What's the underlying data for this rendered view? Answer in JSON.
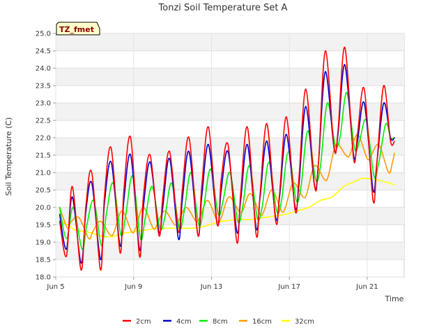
{
  "chart_data": {
    "type": "line",
    "title": "Tonzi Soil Temperature Set A",
    "xlabel": "Time",
    "ylabel": "Soil Temperature (C)",
    "badge": "TZ_fmet",
    "xlim": [
      5.0,
      22.9
    ],
    "ylim": [
      18.0,
      25.0
    ],
    "x_ticks": [
      5,
      9,
      13,
      17,
      21
    ],
    "x_tick_labels": [
      "Jun 5",
      "Jun 9",
      "Jun 13",
      "Jun 17",
      "Jun 21"
    ],
    "y_ticks": [
      18.0,
      18.5,
      19.0,
      19.5,
      20.0,
      20.5,
      21.0,
      21.5,
      22.0,
      22.5,
      23.0,
      23.5,
      24.0,
      24.5,
      25.0
    ],
    "grid": true,
    "legend_position": "bottom",
    "series": [
      {
        "name": "2cm",
        "color": "#ff0000",
        "x": [
          5.2,
          5.55,
          5.85,
          6.3,
          6.55,
          6.85,
          7.3,
          7.5,
          7.85,
          8.3,
          8.5,
          8.85,
          9.3,
          9.5,
          9.85,
          10.3,
          10.5,
          10.85,
          11.3,
          11.5,
          11.85,
          12.3,
          12.5,
          12.85,
          13.3,
          13.5,
          13.85,
          14.3,
          14.5,
          14.85,
          15.3,
          15.5,
          15.85,
          16.3,
          16.5,
          16.85,
          17.3,
          17.5,
          17.85,
          18.3,
          18.5,
          18.85,
          19.3,
          19.5,
          19.85,
          20.3,
          20.5,
          20.85,
          21.3,
          21.5,
          21.85,
          22.2,
          22.4
        ],
        "y": [
          19.6,
          18.6,
          20.6,
          18.2,
          20.05,
          21.0,
          18.2,
          20.3,
          21.7,
          18.7,
          20.5,
          22.0,
          18.6,
          20.3,
          21.5,
          19.2,
          20.3,
          21.6,
          19.3,
          20.5,
          22.0,
          19.2,
          20.6,
          22.3,
          19.5,
          20.8,
          21.8,
          19.0,
          20.4,
          22.3,
          19.2,
          20.4,
          22.4,
          19.6,
          20.4,
          22.6,
          19.9,
          20.9,
          23.4,
          20.6,
          21.3,
          24.5,
          21.7,
          22.2,
          24.6,
          21.4,
          22.1,
          23.4,
          20.2,
          21.3,
          23.5,
          21.9,
          21.9
        ]
      },
      {
        "name": "4cm",
        "color": "#0000cc",
        "x": [
          5.2,
          5.55,
          5.85,
          6.3,
          6.55,
          6.85,
          7.3,
          7.5,
          7.85,
          8.3,
          8.5,
          8.85,
          9.3,
          9.5,
          9.85,
          10.3,
          10.5,
          10.85,
          11.3,
          11.5,
          11.85,
          12.3,
          12.5,
          12.85,
          13.3,
          13.5,
          13.85,
          14.3,
          14.5,
          14.85,
          15.3,
          15.5,
          15.85,
          16.3,
          16.5,
          16.85,
          17.3,
          17.5,
          17.85,
          18.3,
          18.5,
          18.85,
          19.3,
          19.5,
          19.85,
          20.3,
          20.5,
          20.85,
          21.3,
          21.5,
          21.85,
          22.2,
          22.4
        ],
        "y": [
          19.8,
          18.8,
          20.3,
          18.4,
          19.9,
          20.7,
          18.5,
          20.1,
          21.3,
          18.9,
          20.2,
          21.5,
          18.8,
          20.0,
          21.3,
          19.3,
          20.0,
          21.4,
          19.1,
          20.2,
          21.6,
          19.2,
          20.3,
          21.8,
          19.5,
          20.5,
          21.6,
          19.3,
          20.2,
          21.8,
          19.4,
          20.3,
          21.9,
          19.7,
          20.3,
          22.1,
          20.0,
          20.7,
          22.9,
          20.6,
          21.3,
          23.9,
          21.7,
          22.1,
          24.1,
          21.5,
          21.9,
          23.0,
          20.5,
          21.3,
          23.0,
          22.0,
          22.0
        ]
      },
      {
        "name": "8cm",
        "color": "#00ee00",
        "x": [
          5.2,
          5.55,
          5.9,
          6.35,
          6.6,
          6.95,
          7.35,
          7.6,
          7.95,
          8.35,
          8.6,
          8.95,
          9.35,
          9.6,
          9.95,
          10.35,
          10.6,
          10.95,
          11.35,
          11.6,
          11.95,
          12.35,
          12.6,
          12.95,
          13.35,
          13.6,
          13.95,
          14.35,
          14.6,
          14.95,
          15.35,
          15.6,
          15.95,
          16.35,
          16.6,
          16.95,
          17.35,
          17.6,
          17.95,
          18.35,
          18.6,
          18.95,
          19.35,
          19.6,
          19.95,
          20.35,
          20.6,
          20.95,
          21.35,
          21.6,
          21.95,
          22.2,
          22.4
        ],
        "y": [
          20.0,
          19.1,
          20.0,
          18.8,
          19.5,
          20.2,
          18.9,
          19.8,
          20.7,
          19.2,
          19.8,
          20.9,
          19.1,
          19.7,
          20.6,
          19.4,
          19.7,
          20.7,
          19.4,
          19.9,
          21.0,
          19.5,
          20.0,
          21.1,
          19.8,
          20.2,
          21.0,
          19.6,
          20.0,
          21.2,
          19.7,
          20.0,
          21.3,
          19.9,
          20.2,
          21.6,
          20.2,
          20.6,
          22.2,
          20.8,
          21.2,
          23.0,
          21.8,
          22.0,
          23.3,
          21.7,
          21.9,
          22.5,
          20.9,
          21.3,
          22.4,
          22.0,
          22.0
        ]
      },
      {
        "name": "16cm",
        "color": "#ff9900",
        "x": [
          5.2,
          5.6,
          5.8,
          6.2,
          6.7,
          6.9,
          7.3,
          7.8,
          8.0,
          8.4,
          8.9,
          9.1,
          9.5,
          10.0,
          10.2,
          10.6,
          11.1,
          11.3,
          11.7,
          12.2,
          12.4,
          12.8,
          13.3,
          13.5,
          13.9,
          14.4,
          14.6,
          15.0,
          15.5,
          15.7,
          16.1,
          16.6,
          16.8,
          17.2,
          17.7,
          17.9,
          18.3,
          18.8,
          19.0,
          19.4,
          19.9,
          20.1,
          20.5,
          21.0,
          21.2,
          21.6,
          22.1,
          22.3,
          22.4
        ],
        "y": [
          20.0,
          19.4,
          19.6,
          19.7,
          19.1,
          19.3,
          19.6,
          19.2,
          19.3,
          19.9,
          19.3,
          19.4,
          20.0,
          19.4,
          19.5,
          19.9,
          19.5,
          19.6,
          20.0,
          19.6,
          19.7,
          20.2,
          19.6,
          19.7,
          20.3,
          19.9,
          19.9,
          20.4,
          19.8,
          19.9,
          20.5,
          19.9,
          20.0,
          20.7,
          20.3,
          20.4,
          21.2,
          20.8,
          20.9,
          21.8,
          21.5,
          21.5,
          22.1,
          21.4,
          21.5,
          21.8,
          21.0,
          21.3,
          21.55
        ]
      },
      {
        "name": "32cm",
        "color": "#ffff00",
        "x": [
          5.2,
          5.6,
          6.0,
          6.6,
          7.2,
          7.8,
          8.4,
          9.0,
          9.6,
          10.2,
          10.8,
          11.4,
          12.0,
          12.6,
          13.2,
          13.8,
          14.4,
          15.0,
          15.6,
          16.2,
          16.8,
          17.4,
          18.0,
          18.6,
          19.2,
          19.8,
          20.4,
          20.7,
          21.0,
          21.6,
          22.0,
          22.4
        ],
        "y": [
          19.6,
          19.5,
          19.35,
          19.3,
          19.2,
          19.15,
          19.25,
          19.3,
          19.35,
          19.4,
          19.4,
          19.4,
          19.4,
          19.45,
          19.55,
          19.62,
          19.65,
          19.65,
          19.7,
          19.75,
          19.8,
          19.9,
          20.0,
          20.2,
          20.3,
          20.6,
          20.75,
          20.83,
          20.83,
          20.78,
          20.72,
          20.65
        ]
      }
    ]
  }
}
